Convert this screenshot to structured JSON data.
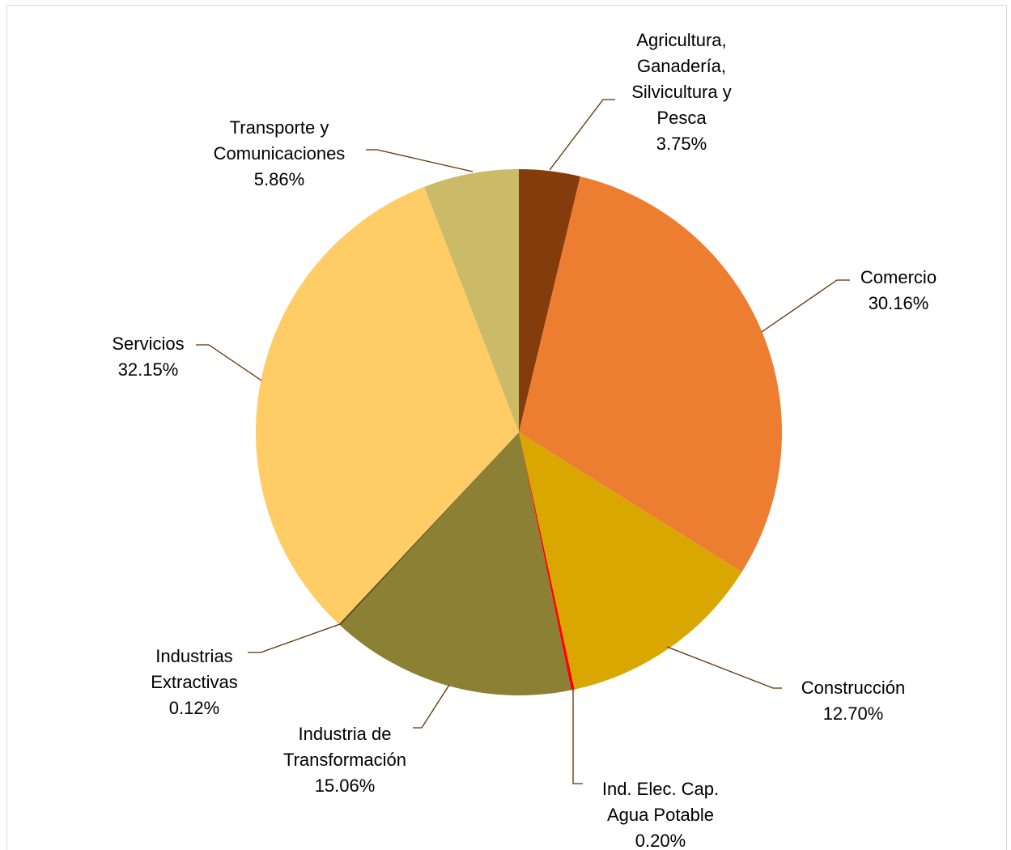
{
  "chart_data": {
    "type": "pie",
    "title": "",
    "start_angle_deg": 0,
    "direction": "clockwise",
    "leader_color": "#5a3200",
    "slices": [
      {
        "category": "Agricultura, Ganadería, Silvicultura y Pesca",
        "lines": [
          "Agricultura,",
          "Ganadería,",
          "Silvicultura y",
          "Pesca"
        ],
        "value": 3.75,
        "value_label": "3.75%",
        "color": "#843c0c"
      },
      {
        "category": "Comercio",
        "lines": [
          "Comercio"
        ],
        "value": 30.16,
        "value_label": "30.16%",
        "color": "#ed7d31"
      },
      {
        "category": "Construcción",
        "lines": [
          "Construcción"
        ],
        "value": 12.7,
        "value_label": "12.70%",
        "color": "#daa700"
      },
      {
        "category": "Ind. Elec. Cap. Agua Potable",
        "lines": [
          "Ind. Elec. Cap.",
          "Agua Potable"
        ],
        "value": 0.2,
        "value_label": "0.20%",
        "color": "#ff0000"
      },
      {
        "category": "Industria de Transformación",
        "lines": [
          "Industria de",
          "Transformación"
        ],
        "value": 15.06,
        "value_label": "15.06%",
        "color": "#8b8034"
      },
      {
        "category": "Industrias Extractivas",
        "lines": [
          "Industrias",
          "Extractivas"
        ],
        "value": 0.12,
        "value_label": "0.12%",
        "color": "#5c5020"
      },
      {
        "category": "Servicios",
        "lines": [
          "Servicios"
        ],
        "value": 32.15,
        "value_label": "32.15%",
        "color": "#ffcc66"
      },
      {
        "category": "Transporte y Comunicaciones",
        "lines": [
          "Transporte y",
          "Comunicaciones"
        ],
        "value": 5.86,
        "value_label": "5.86%",
        "color": "#cbbb68"
      }
    ]
  }
}
